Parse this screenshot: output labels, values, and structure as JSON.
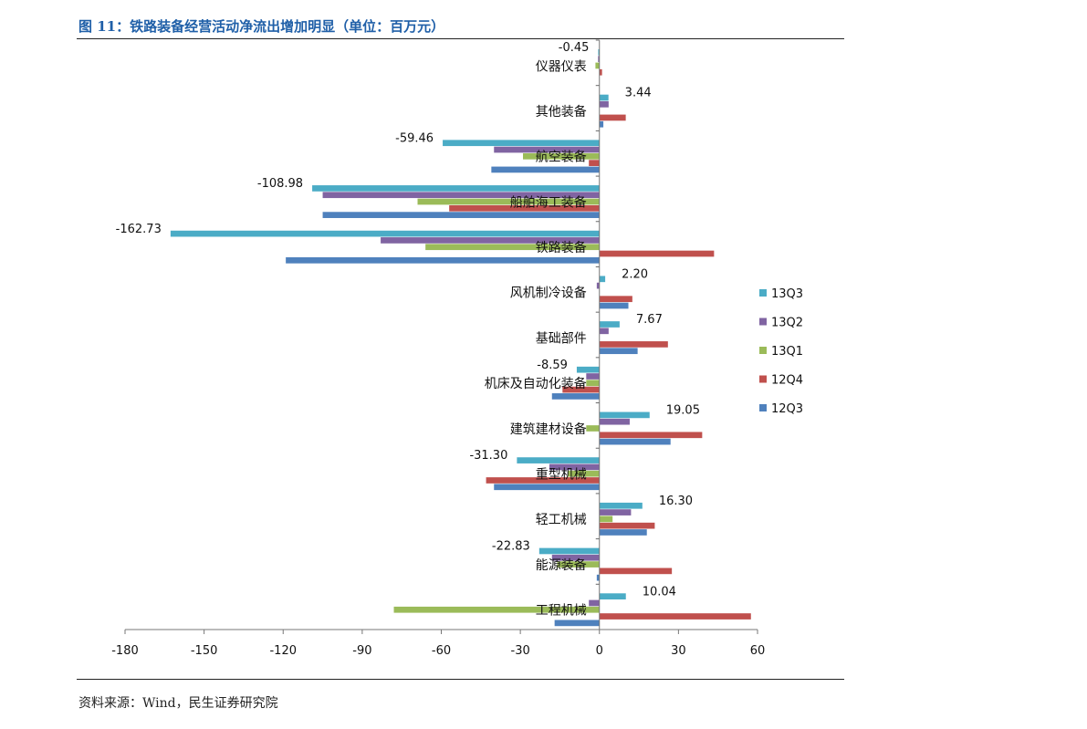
{
  "title": "图 11：铁路装备经营活动净流出增加明显（单位：百万元）",
  "source": "资料来源：Wind，民生证券研究院",
  "chart_data": {
    "type": "bar",
    "orientation": "horizontal",
    "xlim": [
      -180,
      60
    ],
    "ticks": [
      -180,
      -150,
      -120,
      -90,
      -60,
      -30,
      0,
      30,
      60
    ],
    "tick_labels": [
      "-180",
      "-150",
      "-120",
      "-90",
      "-60",
      "-30",
      "0",
      "30",
      "60"
    ],
    "legend_position": "right",
    "grid": false,
    "categories": [
      "仪器仪表",
      "其他装备",
      "航空装备",
      "船舶海工装备",
      "铁路装备",
      "风机制冷设备",
      "基础部件",
      "机床及自动化装备",
      "建筑建材设备",
      "重型机械",
      "轻工机械",
      "能源装备",
      "工程机械"
    ],
    "series": [
      {
        "name": "13Q3",
        "color": "#4bacc6",
        "values": [
          -0.45,
          3.44,
          -59.46,
          -108.98,
          -162.73,
          2.2,
          7.67,
          -8.59,
          19.05,
          -31.3,
          16.3,
          -22.83,
          10.04
        ]
      },
      {
        "name": "13Q2",
        "color": "#8064a2",
        "values": [
          -0.5,
          3.5,
          -40,
          -105,
          -83,
          -1,
          3.5,
          -5,
          11.5,
          -19,
          12,
          -18,
          -4
        ]
      },
      {
        "name": "13Q1",
        "color": "#9bbb59",
        "values": [
          -1.5,
          0,
          -29,
          -69,
          -66,
          0,
          0,
          -5,
          -5,
          -12,
          5,
          -16,
          -78
        ]
      },
      {
        "name": "12Q4",
        "color": "#c0504d",
        "values": [
          1,
          10,
          -4,
          -57,
          43.5,
          12.5,
          26,
          -14,
          39,
          -43,
          21,
          27.5,
          57.5
        ]
      },
      {
        "name": "12Q3",
        "color": "#4f81bd",
        "values": [
          0,
          1.5,
          -41,
          -105,
          -119,
          11,
          14.5,
          -18,
          27,
          -40,
          18,
          -1,
          -17
        ]
      }
    ],
    "data_labels": [
      "-0.45",
      "3.44",
      "-59.46",
      "-108.98",
      "-162.73",
      "2.20",
      "7.67",
      "-8.59",
      "19.05",
      "-31.30",
      "16.30",
      "-22.83",
      "10.04"
    ]
  }
}
